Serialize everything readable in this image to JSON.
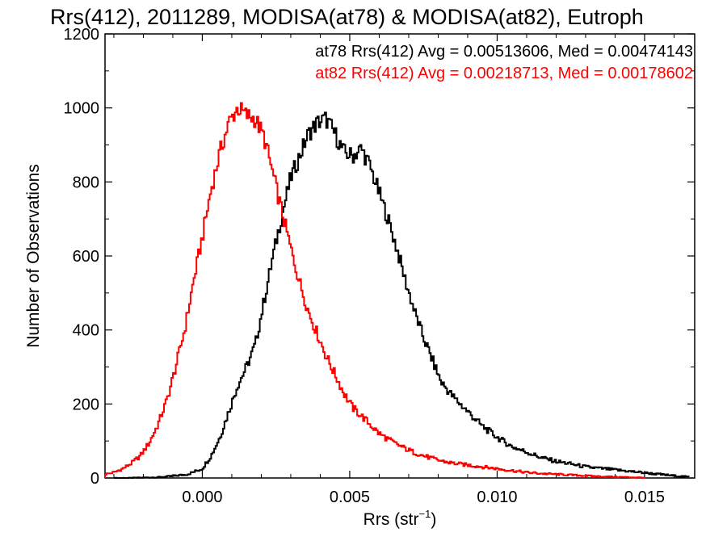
{
  "chart_data": {
    "type": "histogram",
    "title": "Rrs(412), 2011289, MODISA(at78) & MODISA(at82), Eutroph",
    "xlabel": "Rrs (str",
    "xlabel_sup": "−1",
    "xlabel_close": ")",
    "ylabel": "Number of Observations",
    "xlim": [
      -0.0033,
      0.0167
    ],
    "ylim": [
      0,
      1200
    ],
    "xticks": [
      0.0,
      0.005,
      0.01,
      0.015
    ],
    "xtick_labels": [
      "0.000",
      "0.005",
      "0.010",
      "0.015"
    ],
    "yticks": [
      0,
      200,
      400,
      600,
      800,
      1000,
      1200
    ],
    "ytick_labels": [
      "0",
      "200",
      "400",
      "600",
      "800",
      "1000",
      "1200"
    ],
    "legend_placement": "top-right",
    "series": [
      {
        "name": "at78",
        "color": "#000000",
        "legend_text": "at78 Rrs(412) Avg = 0.00513606, Med = 0.00474143",
        "x": [
          -0.003,
          -0.0025,
          -0.002,
          -0.0015,
          -0.001,
          -0.0005,
          0.0,
          0.0003,
          0.0006,
          0.0009,
          0.0012,
          0.0015,
          0.0018,
          0.0021,
          0.0024,
          0.0027,
          0.003,
          0.0033,
          0.0036,
          0.0039,
          0.0042,
          0.0045,
          0.0048,
          0.0051,
          0.0054,
          0.0057,
          0.006,
          0.0063,
          0.0066,
          0.0069,
          0.0072,
          0.0075,
          0.0078,
          0.0081,
          0.0085,
          0.009,
          0.0095,
          0.01,
          0.0105,
          0.011,
          0.0115,
          0.012,
          0.0125,
          0.013,
          0.0135,
          0.014,
          0.0145,
          0.015,
          0.0155,
          0.016,
          0.0165
        ],
        "y": [
          0,
          0,
          1,
          2,
          5,
          10,
          25,
          60,
          110,
          180,
          250,
          300,
          360,
          480,
          600,
          710,
          810,
          870,
          930,
          960,
          970,
          930,
          880,
          870,
          890,
          840,
          770,
          700,
          620,
          530,
          450,
          380,
          320,
          260,
          220,
          180,
          140,
          110,
          85,
          70,
          55,
          45,
          38,
          30,
          26,
          22,
          18,
          14,
          10,
          6,
          3
        ]
      },
      {
        "name": "at82",
        "color": "#ff0000",
        "legend_text": "at82 Rrs(412) Avg = 0.00218713, Med = 0.00178602",
        "x": [
          -0.0033,
          -0.003,
          -0.0027,
          -0.0024,
          -0.0021,
          -0.0018,
          -0.0015,
          -0.0012,
          -0.0009,
          -0.0006,
          -0.0003,
          0.0,
          0.0003,
          0.0006,
          0.0009,
          0.0012,
          0.0015,
          0.0018,
          0.0021,
          0.0024,
          0.0027,
          0.003,
          0.0033,
          0.0036,
          0.0039,
          0.0042,
          0.0045,
          0.0048,
          0.0051,
          0.0055,
          0.006,
          0.0065,
          0.007,
          0.0075,
          0.008,
          0.0085,
          0.009,
          0.0095,
          0.01,
          0.0105,
          0.011,
          0.0115,
          0.012,
          0.0125,
          0.013,
          0.0135,
          0.014,
          0.0145,
          0.015
        ],
        "y": [
          10,
          15,
          25,
          40,
          60,
          95,
          145,
          210,
          300,
          400,
          530,
          650,
          780,
          880,
          960,
          1000,
          980,
          970,
          920,
          820,
          720,
          620,
          530,
          450,
          390,
          330,
          280,
          230,
          190,
          160,
          120,
          95,
          75,
          60,
          48,
          40,
          35,
          30,
          25,
          20,
          15,
          12,
          10,
          8,
          6,
          4,
          3,
          2,
          1
        ]
      }
    ]
  }
}
